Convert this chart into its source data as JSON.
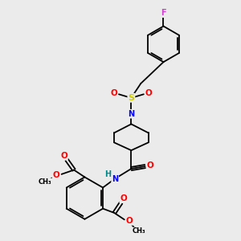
{
  "background_color": "#ebebeb",
  "bond_color": "#000000",
  "atom_colors": {
    "O": "#ff0000",
    "N": "#0000ff",
    "S": "#cccc00",
    "F": "#cc44cc",
    "H": "#008888",
    "C": "#000000"
  },
  "figsize": [
    3.0,
    3.0
  ],
  "dpi": 100
}
